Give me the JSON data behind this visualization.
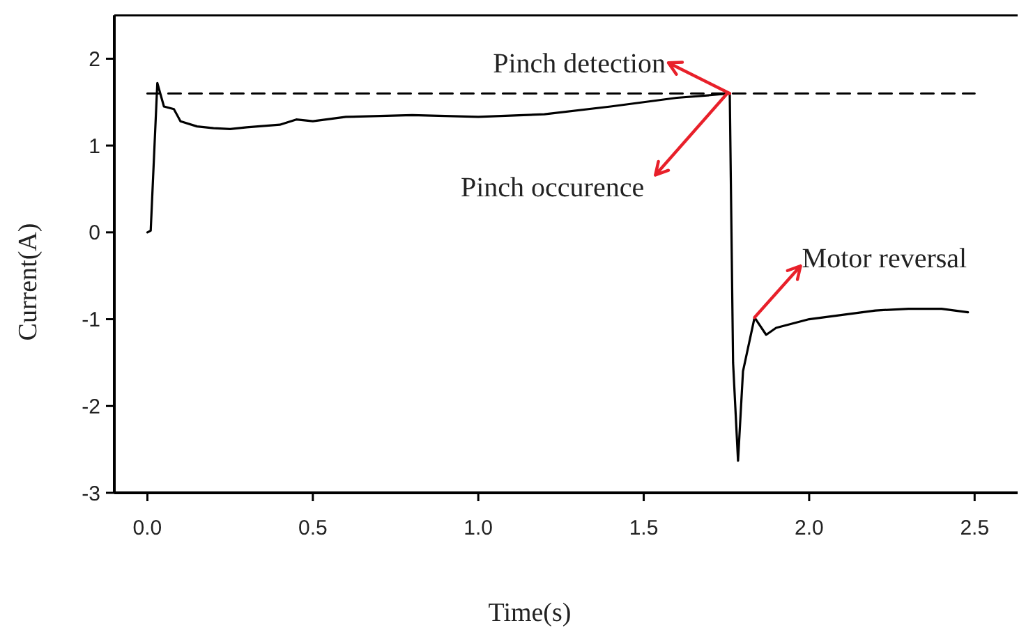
{
  "chart_data": {
    "type": "line",
    "xlabel": "Time(s)",
    "ylabel": "Current(A)",
    "xlim": [
      -0.1,
      2.63
    ],
    "ylim": [
      -3,
      2.5
    ],
    "xticks": [
      {
        "value": 0,
        "label": "0.0"
      },
      {
        "value": 0.5,
        "label": "0.5"
      },
      {
        "value": 1,
        "label": "1.0"
      },
      {
        "value": 1.5,
        "label": "1.5"
      },
      {
        "value": 2,
        "label": "2.0"
      },
      {
        "value": 2.5,
        "label": "2.5"
      }
    ],
    "yticks": [
      -3,
      -2,
      -1,
      0,
      1,
      2
    ],
    "grid": false,
    "marker": "none",
    "series": [
      {
        "color": "#000000",
        "line_style": "solid",
        "x": [
          0,
          0.01,
          0.03,
          0.05,
          0.08,
          0.1,
          0.15,
          0.2,
          0.25,
          0.3,
          0.4,
          0.45,
          0.5,
          0.6,
          0.8,
          1.0,
          1.2,
          1.4,
          1.5,
          1.6,
          1.7,
          1.76,
          1.77,
          1.785,
          1.8,
          1.835,
          1.87,
          1.9,
          1.95,
          2.0,
          2.1,
          2.2,
          2.3,
          2.4,
          2.48
        ],
        "values": [
          0,
          0.02,
          1.72,
          1.45,
          1.42,
          1.28,
          1.22,
          1.2,
          1.19,
          1.21,
          1.24,
          1.3,
          1.28,
          1.33,
          1.35,
          1.33,
          1.36,
          1.45,
          1.5,
          1.55,
          1.58,
          1.6,
          -1.5,
          -2.63,
          -1.6,
          -0.98,
          -1.18,
          -1.1,
          -1.05,
          -1.0,
          -0.95,
          -0.9,
          -0.88,
          -0.88,
          -0.92
        ]
      },
      {
        "color": "#000000",
        "line_style": "dashed",
        "x": [
          0,
          2.5
        ],
        "values": [
          1.6,
          1.6
        ]
      }
    ],
    "annotations": [
      {
        "text": "Pinch detection",
        "x": 1.76,
        "y": 1.6
      },
      {
        "text": "Pinch occurence",
        "x": 1.75,
        "y": 1.59
      },
      {
        "text": "Motor reversal",
        "x": 1.835,
        "y": -0.98
      }
    ]
  }
}
